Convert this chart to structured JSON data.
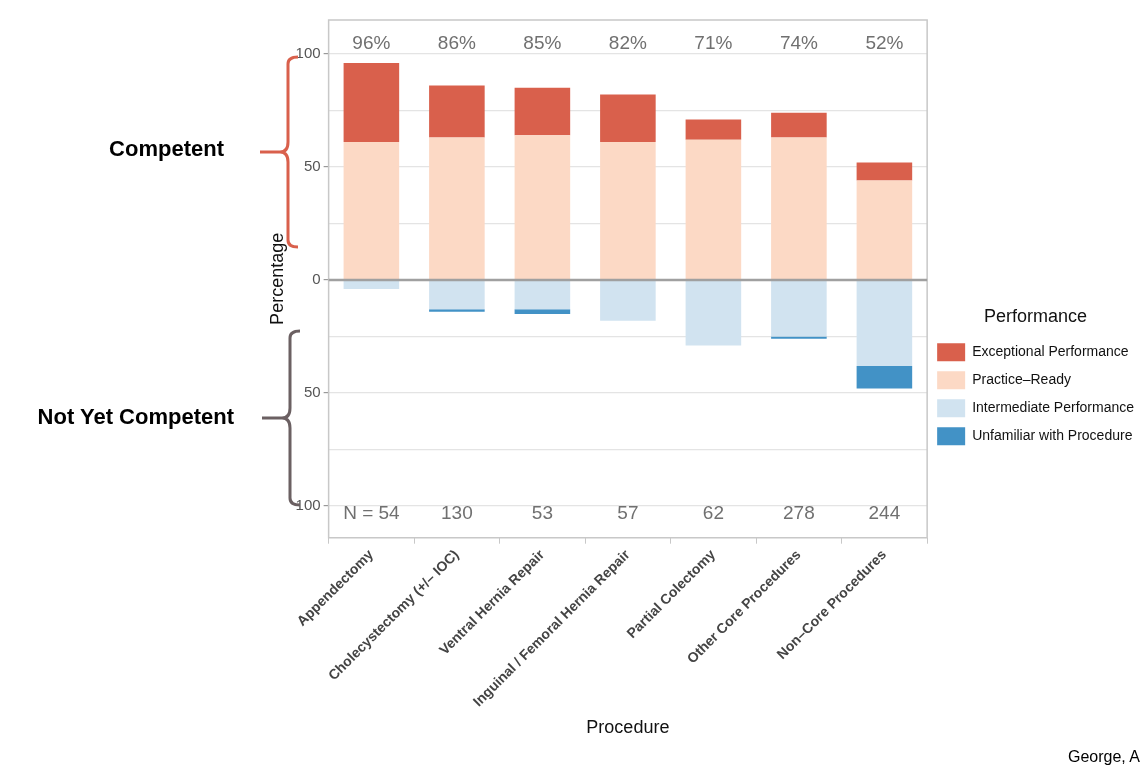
{
  "chart_data": {
    "type": "bar",
    "stacked": true,
    "xlabel": "Procedure",
    "ylabel": "Percentage",
    "legend_title": "Performance",
    "legend": "right",
    "grid": "y",
    "categories": [
      "Appendectomy",
      "Cholecystectomy (+/– IOC)",
      "Ventral Hernia Repair",
      "Inguinal / Femoral Hernia Repair",
      "Partial Colectomy",
      "Other Core Procedures",
      "Non–Core Procedures"
    ],
    "series": [
      {
        "name": "Practice–Ready",
        "color": "#fcd9c5",
        "values": [
          61,
          63,
          64,
          61,
          62,
          63,
          44
        ]
      },
      {
        "name": "Exceptional Performance",
        "color": "#d9604c",
        "values": [
          35,
          23,
          21,
          21,
          9,
          11,
          8
        ]
      },
      {
        "name": "Intermediate Performance",
        "color": "#d1e3f0",
        "values": [
          -4,
          -13,
          -13,
          -18,
          -29,
          -25,
          -38
        ]
      },
      {
        "name": "Unfamiliar with Procedure",
        "color": "#4292c6",
        "values": [
          null,
          -1,
          -2,
          null,
          null,
          -1,
          -10
        ]
      }
    ],
    "ylim": [
      -114,
      115
    ],
    "yticks": [
      {
        "value": -100,
        "label": "100"
      },
      {
        "value": -75,
        "label": null
      },
      {
        "value": -50,
        "label": "50"
      },
      {
        "value": -25,
        "label": null
      },
      0,
      {
        "value": 25,
        "label": null
      },
      50,
      {
        "value": 75,
        "label": null
      },
      100
    ],
    "ref_lines": [
      {
        "axis": "y",
        "value": 0,
        "color": "#a0a0a0"
      }
    ],
    "annotations": [
      "Competent",
      "Not Yet Competent",
      "96%",
      "86%",
      "85%",
      "82%",
      "71%",
      "74%",
      "52%",
      "N = 54",
      "130",
      "53",
      "57",
      "62",
      "278",
      "244",
      "George, A"
    ]
  }
}
